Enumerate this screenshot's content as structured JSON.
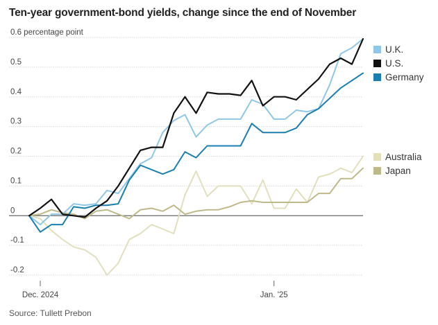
{
  "title": "Ten-year government-bond yields, change since the end of November",
  "source": "Source: Tullett Prebon",
  "chart_data": {
    "type": "line",
    "title": "Ten-year government-bond yields, change since the end of November",
    "ylabel": "percentage point",
    "ylim": [
      -0.22,
      0.62
    ],
    "yticks": [
      -0.2,
      -0.1,
      0,
      0.1,
      0.2,
      0.3,
      0.4,
      0.5,
      0.6
    ],
    "ytick_labels": [
      "-0.2",
      "-0.1",
      "0",
      "0.1",
      "0.2",
      "0.3",
      "0.4",
      "0.5",
      "0.6 percentage point"
    ],
    "x_labels": [
      "Dec. 2024",
      "Jan. '25"
    ],
    "x": [
      "2024-11-29",
      "2024-12-02",
      "2024-12-03",
      "2024-12-04",
      "2024-12-05",
      "2024-12-06",
      "2024-12-09",
      "2024-12-10",
      "2024-12-11",
      "2024-12-12",
      "2024-12-13",
      "2024-12-16",
      "2024-12-17",
      "2024-12-18",
      "2024-12-19",
      "2024-12-20",
      "2024-12-23",
      "2024-12-24",
      "2024-12-26",
      "2024-12-27",
      "2024-12-30",
      "2024-12-31",
      "2025-01-02",
      "2025-01-03",
      "2025-01-06",
      "2025-01-07",
      "2025-01-08",
      "2025-01-09",
      "2025-01-10",
      "2025-01-13",
      "2025-01-14"
    ],
    "grid": true,
    "legend_position": "right",
    "series": [
      {
        "name": "U.K.",
        "color": "#8ec7e8",
        "values": [
          0,
          -0.03,
          0.005,
          0.005,
          0.04,
          0.035,
          0.04,
          0.085,
          0.075,
          0.125,
          0.175,
          0.195,
          0.28,
          0.32,
          0.34,
          0.265,
          0.305,
          0.325,
          0.325,
          0.325,
          0.39,
          0.375,
          0.325,
          0.325,
          0.355,
          0.35,
          0.36,
          0.44,
          0.545,
          0.565,
          0.595
        ]
      },
      {
        "name": "U.S.",
        "color": "#111111",
        "values": [
          0,
          0.025,
          0.055,
          0.005,
          0,
          -0.005,
          0.025,
          0.05,
          0.1,
          0.16,
          0.22,
          0.23,
          0.23,
          0.345,
          0.4,
          0.345,
          0.415,
          0.41,
          0.41,
          0.405,
          0.455,
          0.37,
          0.4,
          0.4,
          0.39,
          0.425,
          0.46,
          0.51,
          0.53,
          0.51,
          0.595
        ]
      },
      {
        "name": "Germany",
        "color": "#1a7fb0",
        "values": [
          0,
          -0.055,
          -0.03,
          -0.03,
          0.03,
          0.025,
          0.035,
          0.035,
          0.04,
          0.12,
          0.17,
          0.155,
          0.14,
          0.155,
          0.215,
          0.195,
          0.235,
          0.235,
          0.235,
          0.235,
          0.31,
          0.28,
          0.28,
          0.28,
          0.295,
          0.34,
          0.36,
          0.395,
          0.43,
          0.455,
          0.48
        ]
      },
      {
        "name": "Australia",
        "color": "#e2dfbd",
        "values": [
          0,
          -0.01,
          -0.05,
          -0.08,
          -0.105,
          -0.115,
          -0.14,
          -0.2,
          -0.16,
          -0.08,
          -0.06,
          -0.03,
          -0.045,
          -0.06,
          0.07,
          0.15,
          0.065,
          0.1,
          0.1,
          0.1,
          0.04,
          0.12,
          0.025,
          0.025,
          0.09,
          0.045,
          0.13,
          0.14,
          0.16,
          0.145,
          0.2
        ]
      },
      {
        "name": "Japan",
        "color": "#bfb98a",
        "values": [
          0,
          0.005,
          0.02,
          0.01,
          0.005,
          -0.01,
          0.015,
          0.02,
          0.005,
          -0.01,
          0.02,
          0.025,
          0.015,
          0.035,
          0.005,
          0.015,
          0.02,
          0.02,
          0.03,
          0.045,
          0.05,
          0.045,
          0.045,
          0.045,
          0.045,
          0.045,
          0.075,
          0.075,
          0.125,
          0.125,
          0.16
        ]
      }
    ]
  }
}
